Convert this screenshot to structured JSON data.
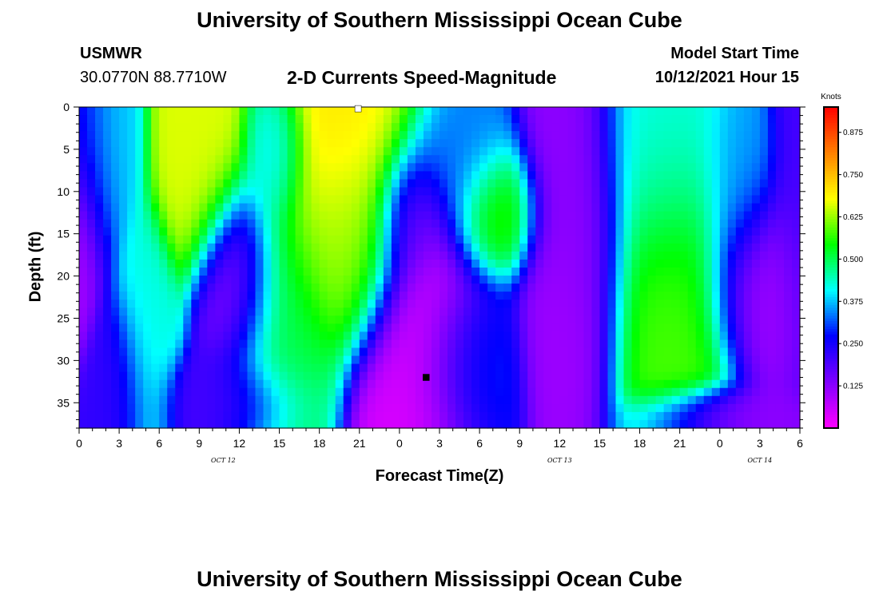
{
  "header": {
    "title": "University of Southern Mississippi Ocean Cube",
    "station": "USMWR",
    "coords": "30.0770N  88.7710W",
    "subtitle": "2-D Currents Speed-Magnitude",
    "model_start_label": "Model Start Time",
    "model_start_value": "10/12/2021 Hour 15"
  },
  "footer": {
    "title": "University of Southern Mississippi Ocean Cube"
  },
  "chart_data": {
    "type": "heatmap",
    "xlabel": "Forecast Time(Z)",
    "ylabel": "Depth (ft)",
    "x_tick_labels": [
      "0",
      "3",
      "6",
      "9",
      "12",
      "15",
      "18",
      "21",
      "0",
      "3",
      "6",
      "9",
      "12",
      "15",
      "18",
      "21",
      "0",
      "3",
      "6"
    ],
    "x_date_labels": [
      {
        "text": "OCT 12",
        "at_tick": 3.6
      },
      {
        "text": "OCT 13",
        "at_tick": 12
      },
      {
        "text": "OCT 14",
        "at_tick": 17
      }
    ],
    "y_ticks": [
      0,
      5,
      10,
      15,
      20,
      25,
      30,
      35
    ],
    "ylim": [
      0,
      38
    ],
    "colorbar": {
      "unit": "Knots",
      "range": [
        0.0,
        0.95
      ],
      "ticks": [
        "0.875",
        "0.750",
        "0.625",
        "0.500",
        "0.375",
        "0.250",
        "0.125"
      ],
      "tick_values": [
        0.875,
        0.75,
        0.625,
        0.5,
        0.375,
        0.25,
        0.125
      ],
      "colors": [
        "#ff00ff",
        "#8000ff",
        "#0000ff",
        "#00ffff",
        "#00ff00",
        "#ffff00",
        "#ff8000",
        "#ff0000"
      ]
    },
    "field_features": [
      {
        "t": 0.0,
        "d": 10,
        "v": 0.15,
        "st": 1.2,
        "sd": 8
      },
      {
        "t": 0.0,
        "d": 17,
        "v": 0.08,
        "st": 0.6,
        "sd": 5
      },
      {
        "t": 1.4,
        "d": 5,
        "v": 0.38,
        "st": 1.5,
        "sd": 6
      },
      {
        "t": 2.8,
        "d": 33,
        "v": 0.22,
        "st": 1.2,
        "sd": 5
      },
      {
        "t": 5.0,
        "d": 28,
        "v": 0.42,
        "st": 1.2,
        "sd": 7
      },
      {
        "t": 9.3,
        "d": 6,
        "v": 0.66,
        "st": 1.7,
        "sd": 7
      },
      {
        "t": 11.8,
        "d": 21,
        "v": 0.08,
        "st": 1.5,
        "sd": 6
      },
      {
        "t": 11.0,
        "d": 35,
        "v": 0.2,
        "st": 2.5,
        "sd": 3
      },
      {
        "t": 14.7,
        "d": 5,
        "v": 0.36,
        "st": 1.2,
        "sd": 5
      },
      {
        "t": 15.0,
        "d": 26,
        "v": 0.5,
        "st": 2.2,
        "sd": 9
      },
      {
        "t": 20.0,
        "d": 3,
        "v": 0.7,
        "st": 3.2,
        "sd": 10
      },
      {
        "t": 20.0,
        "d": 16,
        "v": 0.62,
        "st": 2.0,
        "sd": 6
      },
      {
        "t": 26.0,
        "d": 30,
        "v": 0.04,
        "st": 2.6,
        "sd": 13
      },
      {
        "t": 25.0,
        "d": 13,
        "v": 0.15,
        "st": 1.3,
        "sd": 4
      },
      {
        "t": 28.5,
        "d": 6,
        "v": 0.35,
        "st": 2.0,
        "sd": 5
      },
      {
        "t": 31.0,
        "d": 13,
        "v": 0.6,
        "st": 1.7,
        "sd": 4
      },
      {
        "t": 29.5,
        "d": 31,
        "v": 0.32,
        "st": 2.0,
        "sd": 6
      },
      {
        "t": 37.0,
        "d": 15,
        "v": 0.12,
        "st": 2.0,
        "sd": 12
      },
      {
        "t": 36.0,
        "d": 28,
        "v": 0.1,
        "st": 1.4,
        "sd": 6
      },
      {
        "t": 44.0,
        "d": 5,
        "v": 0.42,
        "st": 2.5,
        "sd": 8
      },
      {
        "t": 44.5,
        "d": 23,
        "v": 0.58,
        "st": 2.5,
        "sd": 10
      },
      {
        "t": 51.0,
        "d": 21,
        "v": 0.1,
        "st": 2.0,
        "sd": 6
      },
      {
        "t": 49.5,
        "d": 8,
        "v": 0.35,
        "st": 1.5,
        "sd": 6
      },
      {
        "t": 48.0,
        "d": 37,
        "v": 0.12,
        "st": 3.0,
        "sd": 2
      },
      {
        "t": 54.0,
        "d": 10,
        "v": 0.2,
        "st": 1.2,
        "sd": 10
      }
    ],
    "markers": [
      {
        "t": 20.9,
        "d": 0.2,
        "color": "#ffffff"
      },
      {
        "t": 26.0,
        "d": 32,
        "color": "#000000"
      }
    ]
  }
}
